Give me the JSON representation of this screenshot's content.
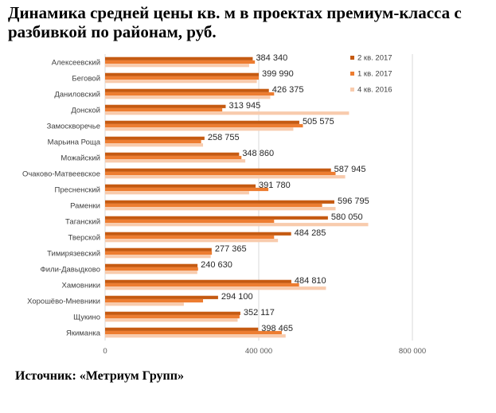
{
  "title": "Динамика средней цены кв. м в проектах премиум-класса с разбивкой по районам, руб.",
  "source": "Источник: «Метриум Групп»",
  "chart_data": {
    "type": "bar",
    "orientation": "horizontal",
    "title": "Динамика средней цены кв. м в проектах премиум-класса с разбивкой по районам, руб.",
    "categories": [
      "Алексеевский",
      "Беговой",
      "Даниловский",
      "Донской",
      "Замоскворечье",
      "Марьина Роща",
      "Можайский",
      "Очаково-Матвеевское",
      "Пресненский",
      "Раменки",
      "Таганский",
      "Тверской",
      "Тимирязевский",
      "Фили-Давыдково",
      "Хамовники",
      "Хорошёво-Мневники",
      "Щукино",
      "Якиманка"
    ],
    "series": [
      {
        "name": "2 кв. 2017",
        "color": "#c55a11",
        "values": [
          384340,
          399990,
          426375,
          313945,
          505575,
          258755,
          348860,
          587945,
          391780,
          596795,
          580050,
          484285,
          277365,
          240630,
          484810,
          294100,
          352117,
          398465
        ],
        "labels": [
          "384 340",
          "399 990",
          "426 375",
          "313 945",
          "505 575",
          "258 755",
          "348 860",
          "587 945",
          "391 780",
          "596 795",
          "580 050",
          "484 285",
          "277 365",
          "240 630",
          "484 810",
          "294 100",
          "352 117",
          "398 465"
        ]
      },
      {
        "name": "1 кв. 2017",
        "color": "#ed7d31",
        "values": [
          390000,
          400000,
          440000,
          305000,
          515000,
          250000,
          355000,
          600000,
          425000,
          565000,
          440000,
          440000,
          278000,
          242000,
          505000,
          255000,
          350000,
          460000
        ]
      },
      {
        "name": "4 кв. 2016",
        "color": "#f8cbad",
        "values": [
          375000,
          395000,
          430000,
          635000,
          490000,
          255000,
          365000,
          625000,
          375000,
          600000,
          685000,
          450000,
          275000,
          240000,
          575000,
          205000,
          345000,
          470000
        ]
      }
    ],
    "xlim": [
      0,
      800000
    ],
    "xticks": [
      0,
      400000,
      800000
    ],
    "xtick_labels": [
      "0",
      "400 000",
      "800 000"
    ],
    "grid": true,
    "legend_position": "right"
  }
}
